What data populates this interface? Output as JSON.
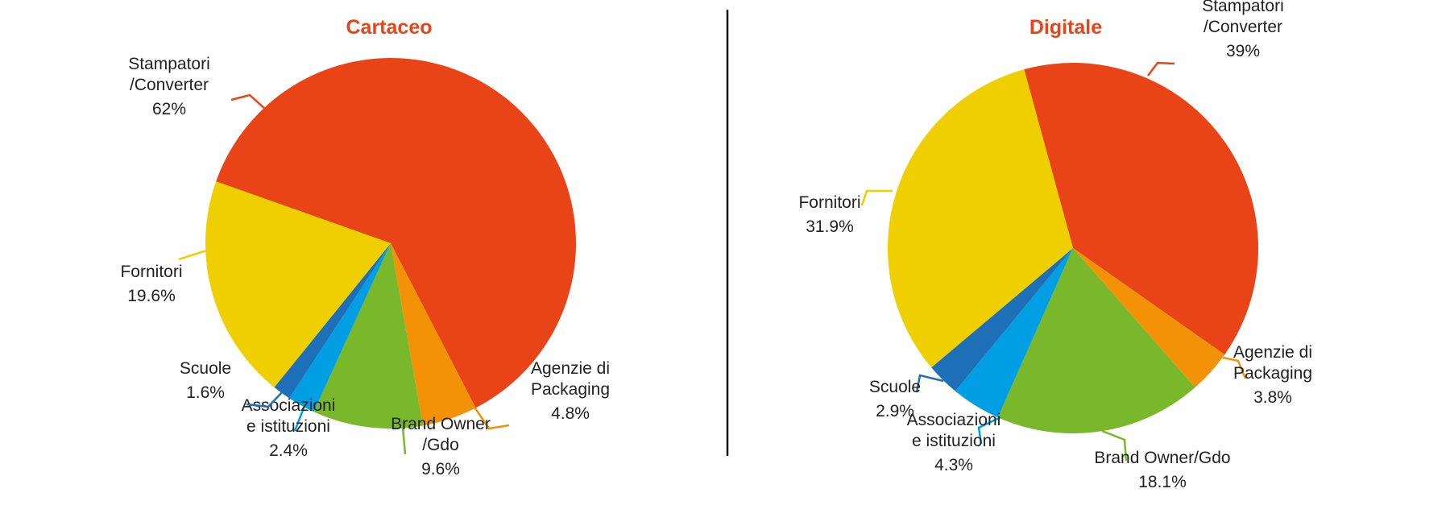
{
  "chart_data": [
    {
      "type": "pie",
      "title": "Cartaceo",
      "title_color": "#e84418",
      "slices": [
        {
          "label": [
            "Stampatori",
            "/Converter"
          ],
          "value_label": "62%",
          "value": 62,
          "color": "#e84418",
          "leader_color": "#e84418"
        },
        {
          "label": [
            "Agenzie di",
            "Packaging"
          ],
          "value_label": "4.8%",
          "value": 4.8,
          "color": "#f39206",
          "leader_color": "#f39206"
        },
        {
          "label": [
            "Brand Owner",
            "/Gdo"
          ],
          "value_label": "9.6%",
          "value": 9.6,
          "color": "#78b82a",
          "leader_color": "#78b82a"
        },
        {
          "label": [
            "Associazioni",
            "e istituzioni"
          ],
          "value_label": "2.4%",
          "value": 2.4,
          "color": "#009fe3",
          "leader_color": "#009fe3"
        },
        {
          "label": [
            "Scuole"
          ],
          "value_label": "1.6%",
          "value": 1.6,
          "color": "#1d70b7",
          "leader_color": "#1d70b7"
        },
        {
          "label": [
            "Fornitori"
          ],
          "value_label": "19.6%",
          "value": 19.6,
          "color": "#efcf00",
          "leader_color": "#efcf00"
        }
      ]
    },
    {
      "type": "pie",
      "title": "Digitale",
      "title_color": "#e84418",
      "slices": [
        {
          "label": [
            "Stampatori",
            "/Converter"
          ],
          "value_label": "39%",
          "value": 39,
          "color": "#e84418",
          "leader_color": "#e84418"
        },
        {
          "label": [
            "Agenzie di",
            "Packaging"
          ],
          "value_label": "3.8%",
          "value": 3.8,
          "color": "#f39206",
          "leader_color": "#f39206"
        },
        {
          "label": [
            "Brand Owner/Gdo"
          ],
          "value_label": "18.1%",
          "value": 18.1,
          "color": "#78b82a",
          "leader_color": "#78b82a"
        },
        {
          "label": [
            "Associazioni",
            "e istituzioni"
          ],
          "value_label": "4.3%",
          "value": 4.3,
          "color": "#009fe3",
          "leader_color": "#009fe3"
        },
        {
          "label": [
            "Scuole"
          ],
          "value_label": "2.9%",
          "value": 2.9,
          "color": "#1d70b7",
          "leader_color": "#1d70b7"
        },
        {
          "label": [
            "Fornitori"
          ],
          "value_label": "31.9%",
          "value": 31.9,
          "color": "#efcf00",
          "leader_color": "#efcf00"
        }
      ]
    }
  ]
}
